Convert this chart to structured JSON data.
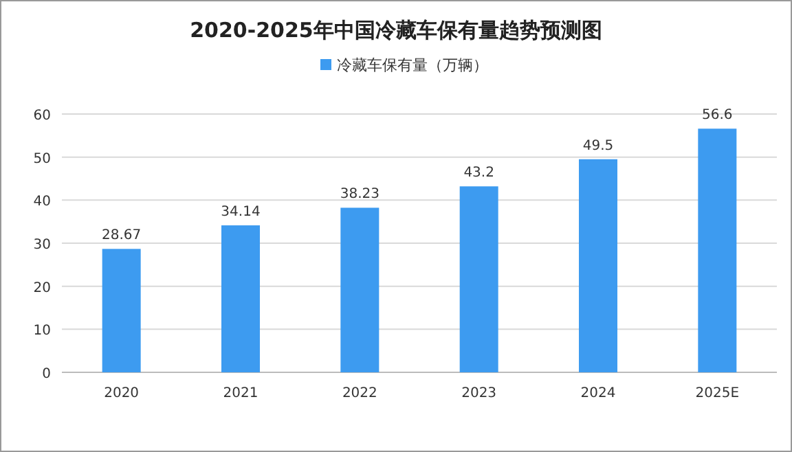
{
  "chart_data": {
    "type": "bar",
    "title": "2020-2025年中国冷藏车保有量趋势预测图",
    "categories": [
      "2020",
      "2021",
      "2022",
      "2023",
      "2024",
      "2025E"
    ],
    "series": [
      {
        "name": "冷藏车保有量（万辆）",
        "color": "#3d9bf0",
        "values": [
          28.67,
          34.14,
          38.23,
          43.2,
          49.5,
          56.6
        ]
      }
    ],
    "ylim": [
      0,
      60
    ],
    "yticks": [
      0,
      10,
      20,
      30,
      40,
      50,
      60
    ],
    "grid": "y",
    "legend": "top",
    "data_labels": true
  }
}
